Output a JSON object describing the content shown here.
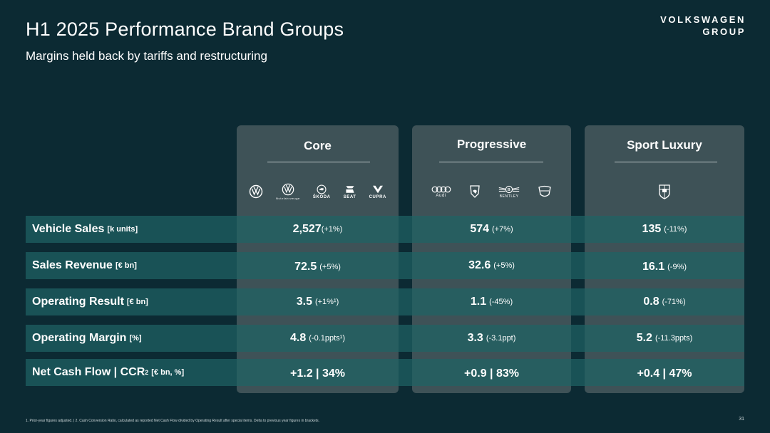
{
  "header": {
    "title": "H1 2025 Performance Brand Groups",
    "subtitle": "Margins held back by tariffs and restructuring",
    "logo_line1": "VOLKSWAGEN",
    "logo_line2": "GROUP"
  },
  "columns": [
    {
      "name": "Core",
      "brands": [
        {
          "icon": "vw-icon",
          "label": ""
        },
        {
          "icon": "vw-commercial-icon",
          "label": "Nutzfahrzeuge"
        },
        {
          "icon": "skoda-icon",
          "label": "ŠKODA"
        },
        {
          "icon": "seat-icon",
          "label": "SEAT"
        },
        {
          "icon": "cupra-icon",
          "label": "CUPRA"
        }
      ]
    },
    {
      "name": "Progressive",
      "brands": [
        {
          "icon": "audi-icon",
          "label": "Audi"
        },
        {
          "icon": "lamborghini-icon",
          "label": ""
        },
        {
          "icon": "bentley-icon",
          "label": "BENTLEY"
        },
        {
          "icon": "ducati-icon",
          "label": ""
        }
      ]
    },
    {
      "name": "Sport Luxury",
      "brands": [
        {
          "icon": "porsche-icon",
          "label": ""
        }
      ]
    }
  ],
  "rows": [
    {
      "label": "Vehicle Sales",
      "unit": "[k units]",
      "cells": [
        {
          "value": "2,527",
          "delta": "(+1%)"
        },
        {
          "value": "574",
          "delta": "(+7%)"
        },
        {
          "value": "135",
          "delta": "(-11%)"
        }
      ]
    },
    {
      "label": "Sales Revenue",
      "unit": "[€ bn]",
      "cells": [
        {
          "value": "72.5",
          "delta": "(+5%)"
        },
        {
          "value": "32.6",
          "delta": "(+5%)"
        },
        {
          "value": "16.1",
          "delta": "(-9%)"
        }
      ]
    },
    {
      "label": "Operating Result",
      "unit": "[€ bn]",
      "cells": [
        {
          "value": "3.5",
          "delta": "(+1%¹)"
        },
        {
          "value": "1.1",
          "delta": "(-45%)"
        },
        {
          "value": "0.8",
          "delta": "(-71%)"
        }
      ]
    },
    {
      "label": "Operating Margin",
      "unit": "[%]",
      "cells": [
        {
          "value": "4.8",
          "delta": "(-0.1ppts¹)"
        },
        {
          "value": "3.3",
          "delta": "(-3.1ppt)"
        },
        {
          "value": "5.2",
          "delta": "(-11.3ppts)"
        }
      ]
    },
    {
      "label": "Net Cash Flow | CCR",
      "label_sup": "2",
      "unit": "[€ bn, %]",
      "cells": [
        {
          "value": "+1.2 | 34%",
          "delta": ""
        },
        {
          "value": "+0.9 | 83%",
          "delta": ""
        },
        {
          "value": "+0.4 | 47%",
          "delta": ""
        }
      ]
    }
  ],
  "footnote": "1. Prior-year figures adjusted. | 2. Cash Conversion Ratio, calculated as reported Net Cash Flow divided by Operating Result after special items. Delta to previous year figures in brackets.",
  "page_number": "31"
}
